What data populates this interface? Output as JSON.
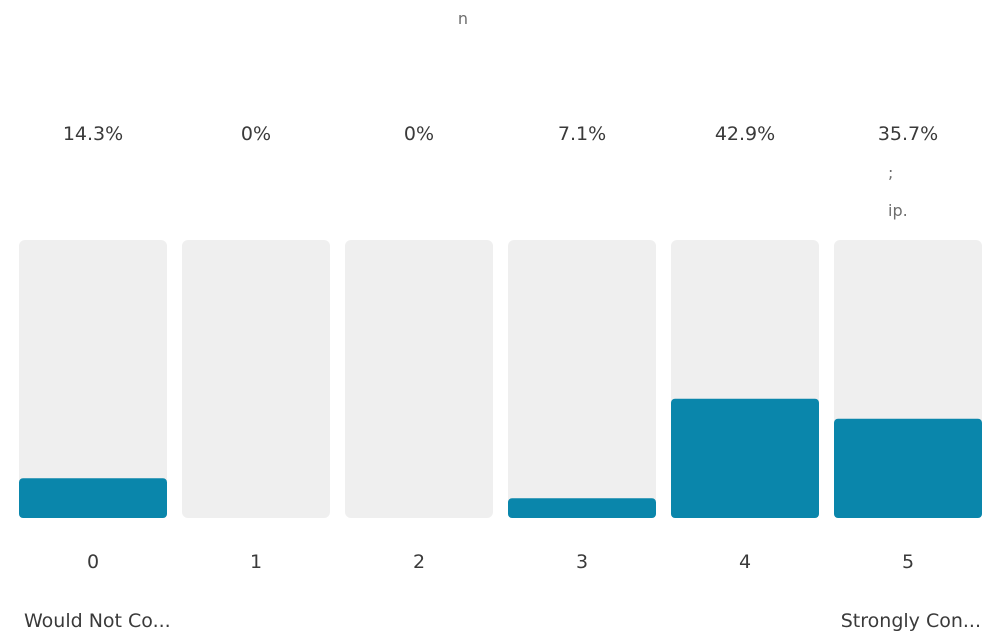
{
  "header_fragment": "n",
  "chart_data": {
    "type": "bar",
    "categories": [
      "0",
      "1",
      "2",
      "3",
      "4",
      "5"
    ],
    "values": [
      14.3,
      0,
      0,
      7.1,
      42.9,
      35.7
    ],
    "value_labels": [
      "14.3%",
      "0%",
      "0%",
      "7.1%",
      "42.9%",
      "35.7%"
    ],
    "ylim": [
      0,
      100
    ],
    "grid": false,
    "legend": "none"
  },
  "overlay_fragments": [
    ";",
    "ip."
  ],
  "scale_labels": {
    "left": "Would Not Co...",
    "right": "Strongly Con..."
  },
  "colors": {
    "bar_fill": "#0a86ab",
    "bar_track": "#efefef"
  }
}
